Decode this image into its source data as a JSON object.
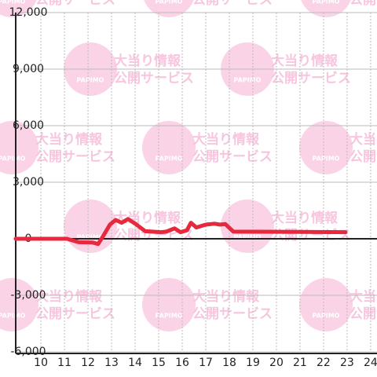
{
  "chart_data": {
    "type": "line",
    "watermark": {
      "brand": "PAPIMO",
      "line1": "大当り情報",
      "line2": "公開サービス"
    },
    "x": [
      8.93,
      11.1,
      11.6,
      12.2,
      12.43,
      12.67,
      12.93,
      13.17,
      13.43,
      13.7,
      14.0,
      14.43,
      15.1,
      15.33,
      15.67,
      15.93,
      16.2,
      16.37,
      16.6,
      17.0,
      17.37,
      17.6,
      17.83,
      18.17,
      22.93
    ],
    "series": [
      {
        "color": "#e8283c",
        "values": [
          0,
          0,
          -180,
          -200,
          -280,
          200,
          750,
          1000,
          850,
          1050,
          800,
          400,
          350,
          380,
          550,
          350,
          450,
          850,
          600,
          750,
          800,
          750,
          780,
          380,
          350
        ]
      }
    ],
    "xlim": [
      8.93,
      24.27
    ],
    "xticks": [
      10,
      11,
      12,
      13,
      14,
      15,
      16,
      17,
      18,
      19,
      20,
      21,
      22,
      23,
      24
    ],
    "ylim": [
      -6000,
      12000
    ],
    "yticks": [
      {
        "value": -6000,
        "label": "-6,000"
      },
      {
        "value": -3000,
        "label": "-3,000"
      },
      0,
      {
        "value": 3000,
        "label": "3,000"
      },
      {
        "value": 6000,
        "label": "6,000"
      },
      {
        "value": 9000,
        "label": "9,000"
      },
      {
        "value": 12000,
        "label": "12,000"
      }
    ],
    "grid": true
  }
}
